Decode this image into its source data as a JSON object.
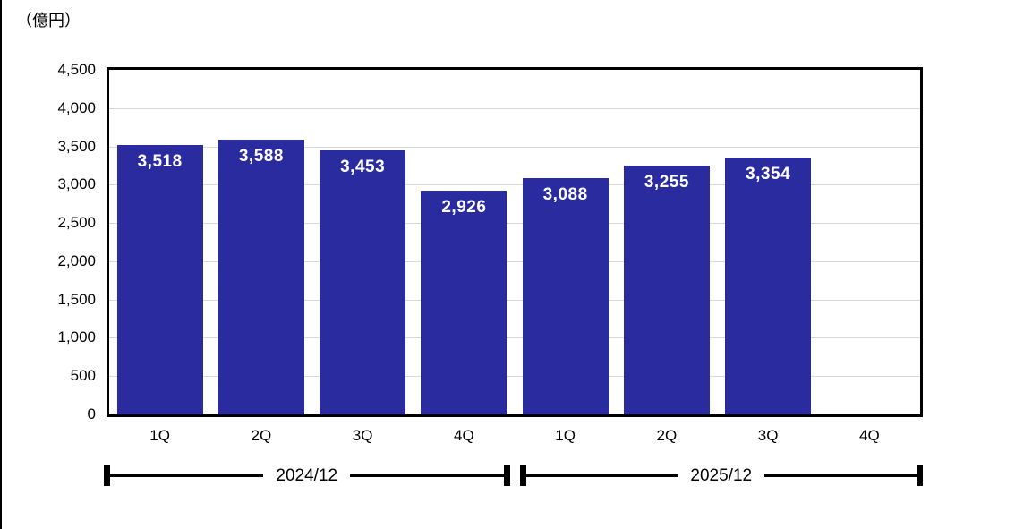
{
  "chart_data": {
    "type": "bar",
    "title": "",
    "unit_label": "（億円）",
    "categories": [
      "1Q",
      "2Q",
      "3Q",
      "4Q",
      "1Q",
      "2Q",
      "3Q",
      "4Q"
    ],
    "values": [
      3518,
      3588,
      3453,
      2926,
      3088,
      3255,
      3354,
      null
    ],
    "value_labels": [
      "3,518",
      "3,588",
      "3,453",
      "2,926",
      "3,088",
      "3,255",
      "3,354",
      null
    ],
    "groups": [
      {
        "label": "2024/12",
        "start": 0,
        "end": 3
      },
      {
        "label": "2025/12",
        "start": 4,
        "end": 7
      }
    ],
    "xlabel": "",
    "ylabel": "",
    "ylim": [
      0,
      4500
    ],
    "ytick_step": 500,
    "ytick_labels": [
      "0",
      "500",
      "1,000",
      "1,500",
      "2,000",
      "2,500",
      "3,000",
      "3,500",
      "4,000",
      "4,500"
    ],
    "grid": true,
    "legend": "none",
    "colors": {
      "bar": "#2B2BA0",
      "bar_label": "#FFFFFF",
      "gridline": "#D9D9D9",
      "axis": "#000000",
      "text": "#000000",
      "background": "#FFFFFF"
    }
  }
}
